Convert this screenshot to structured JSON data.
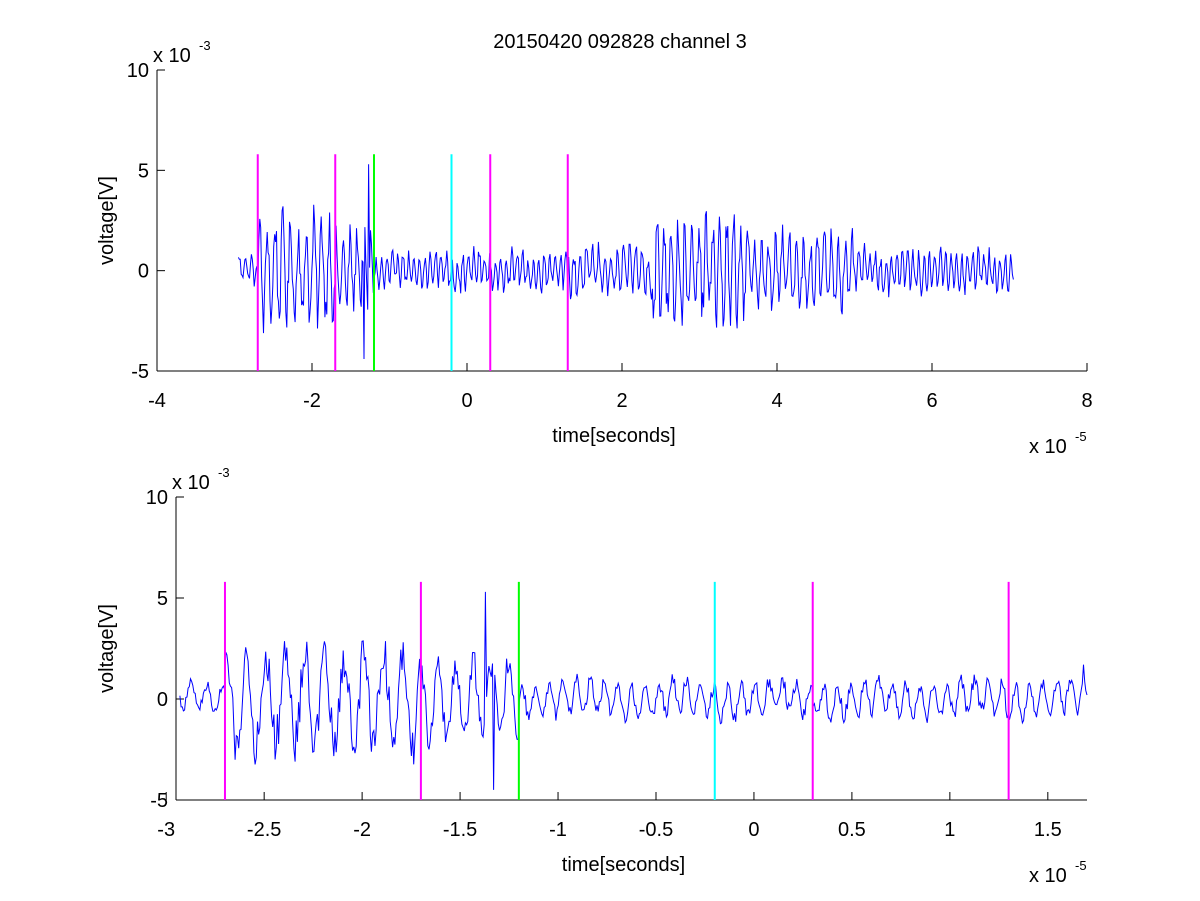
{
  "figure": {
    "title": "20150420 092828 channel 3",
    "background": "#ffffff"
  },
  "chart_data": [
    {
      "type": "line",
      "title": "20150420 092828 channel 3",
      "xlabel": "time[seconds]",
      "ylabel": "voltage[V]",
      "xlim": [
        -4,
        8
      ],
      "ylim": [
        -5,
        10
      ],
      "x_ticks": [
        -4,
        -2,
        0,
        2,
        4,
        6,
        8
      ],
      "x_tick_labels": [
        "-4",
        "-2",
        "0",
        "2",
        "4",
        "6",
        "8"
      ],
      "y_ticks": [
        -5,
        0,
        5,
        10
      ],
      "y_tick_labels": [
        "-5",
        "0",
        "5",
        "10"
      ],
      "x_multiplier": {
        "base": "x 10",
        "exponent": "-5"
      },
      "y_multiplier": {
        "base": "x 10",
        "exponent": "-3"
      },
      "grid": false,
      "series": [
        {
          "color": "#0000ff",
          "x_range": [
            -2.95,
            7.05
          ],
          "segments": [
            {
              "x": [
                -2.95,
                -2.7
              ],
              "amplitude": 0.8
            },
            {
              "x": [
                -2.7,
                -1.7
              ],
              "amplitude": 3.0,
              "period": 0.1
            },
            {
              "x": [
                -1.7,
                -1.2
              ],
              "amplitude": 2.2,
              "period": 0.09
            },
            {
              "x": [
                -1.2,
                1.3
              ],
              "amplitude": 1.0,
              "period": 0.07
            },
            {
              "x": [
                1.3,
                2.4
              ],
              "amplitude": 1.3,
              "period": 0.08
            },
            {
              "x": [
                2.4,
                3.6
              ],
              "amplitude": 3.0,
              "period": 0.09
            },
            {
              "x": [
                3.6,
                5.0
              ],
              "amplitude": 2.0,
              "period": 0.09
            },
            {
              "x": [
                5.0,
                7.05
              ],
              "amplitude": 1.1,
              "period": 0.07
            }
          ],
          "spikes": [
            {
              "x": -1.27,
              "y": 5.3
            },
            {
              "x": -1.33,
              "y": -4.4
            }
          ]
        }
      ],
      "markers": [
        {
          "x": -2.7,
          "y_range": [
            -5,
            5.8
          ],
          "color": "#ff00ff"
        },
        {
          "x": -1.7,
          "y_range": [
            -5,
            5.8
          ],
          "color": "#ff00ff"
        },
        {
          "x": -1.2,
          "y_range": [
            -5,
            5.8
          ],
          "color": "#00ff00"
        },
        {
          "x": -0.2,
          "y_range": [
            -5,
            5.8
          ],
          "color": "#00ffff"
        },
        {
          "x": 0.3,
          "y_range": [
            -5,
            5.8
          ],
          "color": "#ff00ff"
        },
        {
          "x": 1.3,
          "y_range": [
            -5,
            5.8
          ],
          "color": "#ff00ff"
        }
      ]
    },
    {
      "type": "line",
      "title": "",
      "xlabel": "time[seconds]",
      "ylabel": "voltage[V]",
      "xlim": [
        -2.95,
        1.7
      ],
      "ylim": [
        -5,
        10
      ],
      "x_ticks": [
        -3,
        -2.5,
        -2,
        -1.5,
        -1,
        -0.5,
        0,
        0.5,
        1,
        1.5
      ],
      "x_tick_labels": [
        "-3",
        "-2.5",
        "-2",
        "-1.5",
        "-1",
        "-0.5",
        "0",
        "0.5",
        "1",
        "1.5"
      ],
      "y_ticks": [
        -5,
        0,
        5,
        10
      ],
      "y_tick_labels": [
        "-5",
        "0",
        "5",
        "10"
      ],
      "x_multiplier": {
        "base": "x 10",
        "exponent": "-5"
      },
      "y_multiplier": {
        "base": "x 10",
        "exponent": "-3"
      },
      "grid": false,
      "series": [
        {
          "color": "#0000ff",
          "x_range": [
            -2.93,
            1.7
          ],
          "segments": [
            {
              "x": [
                -2.93,
                -2.7
              ],
              "amplitude": 0.8
            },
            {
              "x": [
                -2.7,
                -1.7
              ],
              "amplitude": 3.0,
              "period": 0.1
            },
            {
              "x": [
                -1.7,
                -1.2
              ],
              "amplitude": 2.2,
              "period": 0.09
            },
            {
              "x": [
                -1.2,
                1.7
              ],
              "amplitude": 1.0,
              "period": 0.07
            }
          ],
          "spikes": [
            {
              "x": -1.37,
              "y": 5.3
            },
            {
              "x": -1.33,
              "y": -4.5
            },
            {
              "x": 1.68,
              "y": 1.7
            }
          ]
        }
      ],
      "markers": [
        {
          "x": -2.7,
          "y_range": [
            -5,
            5.8
          ],
          "color": "#ff00ff"
        },
        {
          "x": -1.7,
          "y_range": [
            -5,
            5.8
          ],
          "color": "#ff00ff"
        },
        {
          "x": -1.2,
          "y_range": [
            -5,
            5.8
          ],
          "color": "#00ff00"
        },
        {
          "x": -0.2,
          "y_range": [
            -5,
            5.8
          ],
          "color": "#00ffff"
        },
        {
          "x": 0.3,
          "y_range": [
            -5,
            5.8
          ],
          "color": "#ff00ff"
        },
        {
          "x": 1.3,
          "y_range": [
            -5,
            5.8
          ],
          "color": "#ff00ff"
        }
      ]
    }
  ]
}
